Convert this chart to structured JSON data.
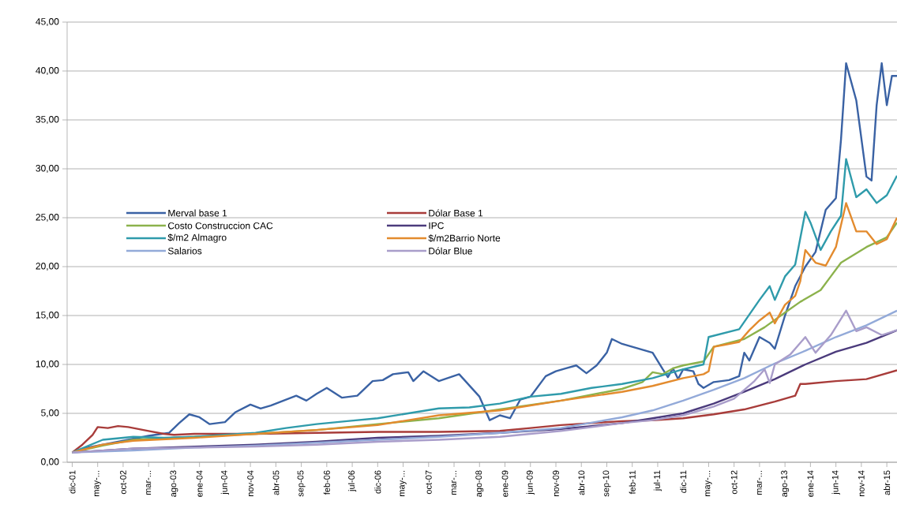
{
  "chart_data": {
    "type": "line",
    "xlim": [
      "2001-11",
      "2015-06"
    ],
    "xticks": [
      {
        "value": "2001-12",
        "label": "dic-01"
      },
      {
        "value": "2002-05",
        "label": "may-..."
      },
      {
        "value": "2002-10",
        "label": "oct-02"
      },
      {
        "value": "2003-03",
        "label": "mar-..."
      },
      {
        "value": "2003-08",
        "label": "ago-03"
      },
      {
        "value": "2004-01",
        "label": "ene-04"
      },
      {
        "value": "2004-06",
        "label": "jun-04"
      },
      {
        "value": "2004-11",
        "label": "nov-04"
      },
      {
        "value": "2005-04",
        "label": "abr-05"
      },
      {
        "value": "2005-09",
        "label": "sep-05"
      },
      {
        "value": "2006-02",
        "label": "feb-06"
      },
      {
        "value": "2006-07",
        "label": "jul-06"
      },
      {
        "value": "2006-12",
        "label": "dic-06"
      },
      {
        "value": "2007-05",
        "label": "may-..."
      },
      {
        "value": "2007-10",
        "label": "oct-07"
      },
      {
        "value": "2008-03",
        "label": "mar-..."
      },
      {
        "value": "2008-08",
        "label": "ago-08"
      },
      {
        "value": "2009-01",
        "label": "ene-09"
      },
      {
        "value": "2009-06",
        "label": "jun-09"
      },
      {
        "value": "2009-11",
        "label": "nov-09"
      },
      {
        "value": "2010-04",
        "label": "abr-10"
      },
      {
        "value": "2010-09",
        "label": "sep-10"
      },
      {
        "value": "2011-02",
        "label": "feb-11"
      },
      {
        "value": "2011-07",
        "label": "jul-11"
      },
      {
        "value": "2011-12",
        "label": "dic-11"
      },
      {
        "value": "2012-05",
        "label": "may-..."
      },
      {
        "value": "2012-10",
        "label": "oct-12"
      },
      {
        "value": "2013-03",
        "label": "mar-..."
      },
      {
        "value": "2013-08",
        "label": "ago-13"
      },
      {
        "value": "2014-01",
        "label": "ene-14"
      },
      {
        "value": "2014-06",
        "label": "jun-14"
      },
      {
        "value": "2014-11",
        "label": "nov-14"
      },
      {
        "value": "2015-04",
        "label": "abr-15"
      }
    ],
    "ylim": [
      0,
      45
    ],
    "yticks": [
      {
        "value": 0,
        "label": "0,00"
      },
      {
        "value": 5,
        "label": "5,00"
      },
      {
        "value": 10,
        "label": "10,00"
      },
      {
        "value": 15,
        "label": "15,00"
      },
      {
        "value": 20,
        "label": "20,00"
      },
      {
        "value": 25,
        "label": "25,00"
      },
      {
        "value": 30,
        "label": "30,00"
      },
      {
        "value": 35,
        "label": "35,00"
      },
      {
        "value": 40,
        "label": "40,00"
      },
      {
        "value": 45,
        "label": "45,00"
      }
    ],
    "grid": "y",
    "legend": "left",
    "series": [
      {
        "name": "Merval base 1",
        "color": "#3a62a4",
        "x": [
          "2001-12",
          "2002-03",
          "2002-06",
          "2002-10",
          "2003-03",
          "2003-07",
          "2003-09",
          "2003-11",
          "2004-01",
          "2004-03",
          "2004-06",
          "2004-08",
          "2004-11",
          "2005-01",
          "2005-03",
          "2005-06",
          "2005-08",
          "2005-10",
          "2005-12",
          "2006-02",
          "2006-05",
          "2006-08",
          "2006-11",
          "2007-01",
          "2007-03",
          "2007-06",
          "2007-07",
          "2007-09",
          "2007-12",
          "2008-04",
          "2008-08",
          "2008-10",
          "2008-12",
          "2009-02",
          "2009-04",
          "2009-06",
          "2009-09",
          "2009-11",
          "2010-01",
          "2010-03",
          "2010-05",
          "2010-07",
          "2010-09",
          "2010-10",
          "2010-12",
          "2011-02",
          "2011-04",
          "2011-06",
          "2011-08",
          "2011-09",
          "2011-10",
          "2011-11",
          "2011-12",
          "2012-02",
          "2012-03",
          "2012-04",
          "2012-06",
          "2012-09",
          "2012-11",
          "2012-12",
          "2013-01",
          "2013-03",
          "2013-05",
          "2013-06",
          "2013-08",
          "2013-10",
          "2013-12",
          "2014-02",
          "2014-04",
          "2014-06",
          "2014-07",
          "2014-08",
          "2014-10",
          "2014-12",
          "2015-01",
          "2015-02",
          "2015-03",
          "2015-04",
          "2015-05",
          "2015-06"
        ],
        "values": [
          1.0,
          1.5,
          1.8,
          2.2,
          2.7,
          3.0,
          4.0,
          4.9,
          4.6,
          3.9,
          4.1,
          5.1,
          5.9,
          5.5,
          5.8,
          6.4,
          6.8,
          6.3,
          7.0,
          7.6,
          6.6,
          6.8,
          8.3,
          8.4,
          9.0,
          9.2,
          8.3,
          9.3,
          8.3,
          9.0,
          6.7,
          4.3,
          4.8,
          4.5,
          6.4,
          6.7,
          8.8,
          9.3,
          9.6,
          9.9,
          9.1,
          9.9,
          11.2,
          12.6,
          12.1,
          11.8,
          11.5,
          11.2,
          9.5,
          8.7,
          9.6,
          8.5,
          9.5,
          9.3,
          8.0,
          7.6,
          8.2,
          8.4,
          8.8,
          11.2,
          10.4,
          12.8,
          12.2,
          11.6,
          15.0,
          18.0,
          20.0,
          21.5,
          25.8,
          27.0,
          33.0,
          40.8,
          37.0,
          29.2,
          28.8,
          36.5,
          40.8,
          36.5,
          39.5,
          39.5
        ]
      },
      {
        "name": "Dólar Base 1",
        "color": "#a83c3a",
        "x": [
          "2001-12",
          "2002-02",
          "2002-04",
          "2002-05",
          "2002-07",
          "2002-09",
          "2002-11",
          "2003-03",
          "2003-06",
          "2003-08",
          "2003-12",
          "2004-12",
          "2005-12",
          "2006-12",
          "2007-12",
          "2008-12",
          "2009-06",
          "2009-12",
          "2010-06",
          "2010-12",
          "2011-06",
          "2011-12",
          "2012-06",
          "2012-12",
          "2013-06",
          "2013-10",
          "2013-11",
          "2013-12",
          "2014-06",
          "2014-12",
          "2015-06"
        ],
        "values": [
          1.0,
          1.8,
          2.8,
          3.6,
          3.5,
          3.7,
          3.6,
          3.2,
          2.9,
          2.8,
          2.9,
          2.9,
          3.0,
          3.1,
          3.1,
          3.2,
          3.5,
          3.8,
          4.0,
          4.2,
          4.3,
          4.5,
          4.9,
          5.4,
          6.2,
          6.8,
          8.0,
          8.0,
          8.3,
          8.5,
          9.4
        ]
      },
      {
        "name": "Costo Construccion CAC",
        "color": "#8cb24c",
        "x": [
          "2001-12",
          "2002-06",
          "2002-12",
          "2003-12",
          "2004-12",
          "2005-12",
          "2006-12",
          "2007-12",
          "2008-12",
          "2009-12",
          "2010-12",
          "2011-04",
          "2011-06",
          "2011-08",
          "2011-10",
          "2011-12",
          "2012-04",
          "2012-06",
          "2012-12",
          "2013-04",
          "2013-08",
          "2013-11",
          "2014-03",
          "2014-05",
          "2014-07",
          "2014-12",
          "2015-04",
          "2015-06"
        ],
        "values": [
          1.0,
          1.7,
          2.3,
          2.6,
          2.9,
          3.3,
          3.9,
          4.5,
          5.4,
          6.3,
          7.5,
          8.2,
          9.2,
          9.0,
          9.6,
          9.9,
          10.3,
          11.8,
          12.6,
          13.8,
          15.3,
          16.4,
          17.6,
          19.0,
          20.4,
          22.0,
          23.0,
          24.5
        ]
      },
      {
        "name": "IPC",
        "color": "#4b3b7c",
        "x": [
          "2001-12",
          "2002-12",
          "2003-12",
          "2004-12",
          "2005-12",
          "2006-12",
          "2007-12",
          "2008-12",
          "2009-12",
          "2010-12",
          "2011-06",
          "2011-12",
          "2012-06",
          "2012-12",
          "2013-06",
          "2013-12",
          "2014-06",
          "2014-12",
          "2015-06"
        ],
        "values": [
          1.0,
          1.4,
          1.6,
          1.8,
          2.1,
          2.5,
          2.7,
          3.0,
          3.4,
          4.0,
          4.5,
          5.0,
          6.0,
          7.2,
          8.5,
          10.0,
          11.3,
          12.2,
          13.5
        ]
      },
      {
        "name": "$/m2 Almagro",
        "color": "#2f9bab",
        "x": [
          "2001-12",
          "2002-06",
          "2002-12",
          "2003-06",
          "2003-12",
          "2004-06",
          "2004-12",
          "2005-06",
          "2005-12",
          "2006-06",
          "2006-12",
          "2007-06",
          "2007-12",
          "2008-06",
          "2008-12",
          "2009-06",
          "2009-12",
          "2010-06",
          "2010-12",
          "2011-06",
          "2011-12",
          "2012-04",
          "2012-05",
          "2012-11",
          "2013-03",
          "2013-05",
          "2013-06",
          "2013-08",
          "2013-10",
          "2013-12",
          "2014-01",
          "2014-03",
          "2014-05",
          "2014-07",
          "2014-08",
          "2014-10",
          "2014-12",
          "2015-02",
          "2015-04",
          "2015-06"
        ],
        "values": [
          1.0,
          2.3,
          2.6,
          2.5,
          2.6,
          2.8,
          3.0,
          3.5,
          3.9,
          4.2,
          4.5,
          5.0,
          5.5,
          5.6,
          6.0,
          6.7,
          7.0,
          7.6,
          8.0,
          8.6,
          9.5,
          10.0,
          12.8,
          13.6,
          16.6,
          18.0,
          16.6,
          19.0,
          20.2,
          25.6,
          24.5,
          21.7,
          23.6,
          25.2,
          31.0,
          27.1,
          27.9,
          26.5,
          27.3,
          29.3
        ]
      },
      {
        "name": "$/m2Barrio Norte",
        "color": "#e38b2e",
        "x": [
          "2001-12",
          "2002-06",
          "2002-12",
          "2003-12",
          "2004-12",
          "2005-12",
          "2006-12",
          "2007-12",
          "2008-12",
          "2009-12",
          "2010-12",
          "2011-06",
          "2011-12",
          "2012-04",
          "2012-05",
          "2012-06",
          "2012-08",
          "2012-11",
          "2013-01",
          "2013-03",
          "2013-05",
          "2013-06",
          "2013-08",
          "2013-10",
          "2013-11",
          "2013-12",
          "2014-02",
          "2014-04",
          "2014-06",
          "2014-08",
          "2014-10",
          "2014-12",
          "2015-02",
          "2015-04",
          "2015-06"
        ],
        "values": [
          1.0,
          1.8,
          2.2,
          2.5,
          2.9,
          3.3,
          3.8,
          4.8,
          5.3,
          6.3,
          7.2,
          7.8,
          8.6,
          9.0,
          9.3,
          11.8,
          12.0,
          12.3,
          13.5,
          14.5,
          15.3,
          14.2,
          16.1,
          17.0,
          18.5,
          21.7,
          20.4,
          20.1,
          22.0,
          26.5,
          23.6,
          23.6,
          22.3,
          22.8,
          25.0
        ]
      },
      {
        "name": "Salarios",
        "color": "#93aad9",
        "x": [
          "2001-12",
          "2002-12",
          "2003-12",
          "2004-12",
          "2005-12",
          "2006-12",
          "2007-12",
          "2008-12",
          "2009-12",
          "2010-12",
          "2011-06",
          "2011-12",
          "2012-06",
          "2012-12",
          "2013-06",
          "2013-12",
          "2014-06",
          "2014-12",
          "2015-06"
        ],
        "values": [
          1.0,
          1.2,
          1.5,
          1.7,
          2.0,
          2.3,
          2.6,
          3.0,
          3.5,
          4.6,
          5.3,
          6.3,
          7.4,
          8.6,
          10.1,
          11.4,
          12.8,
          14.0,
          15.5
        ]
      },
      {
        "name": "Dólar Blue",
        "color": "#a99dca",
        "x": [
          "2001-12",
          "2002-12",
          "2003-12",
          "2004-12",
          "2005-12",
          "2006-12",
          "2007-12",
          "2008-12",
          "2009-12",
          "2010-12",
          "2011-06",
          "2011-12",
          "2012-06",
          "2012-10",
          "2013-02",
          "2013-04",
          "2013-05",
          "2013-06",
          "2013-09",
          "2013-12",
          "2014-02",
          "2014-05",
          "2014-08",
          "2014-10",
          "2014-12",
          "2015-03",
          "2015-06"
        ],
        "values": [
          1.0,
          1.4,
          1.5,
          1.6,
          1.8,
          2.1,
          2.3,
          2.6,
          3.2,
          4.0,
          4.3,
          4.8,
          5.7,
          6.5,
          8.3,
          9.5,
          8.1,
          10.0,
          11.0,
          12.8,
          11.2,
          13.0,
          15.5,
          13.4,
          13.8,
          13.0,
          13.5
        ]
      }
    ]
  }
}
